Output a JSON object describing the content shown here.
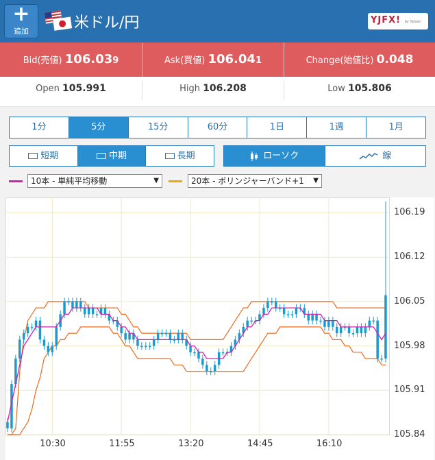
{
  "header": {
    "add_label": "追加",
    "pair_title": "米ドル/円",
    "logo_text": "YJFX!",
    "logo_sub": "by Yahoo!"
  },
  "quotes": {
    "bid_label": "Bid(売値)",
    "bid_main": "106.03",
    "bid_pip": "9",
    "ask_label": "Ask(買値)",
    "ask_main": "106.04",
    "ask_pip": "1",
    "change_label": "Change(始値比)",
    "change_value": "0.048"
  },
  "stats": {
    "open_label": "Open",
    "open_value": "105.991",
    "high_label": "High",
    "high_value": "106.208",
    "low_label": "Low",
    "low_value": "105.806"
  },
  "timeframes": [
    "1分",
    "5分",
    "15分",
    "60分",
    "1日",
    "1週",
    "1月"
  ],
  "timeframe_active": 1,
  "ranges": [
    "短期",
    "中期",
    "長期"
  ],
  "range_active": 1,
  "chart_types": [
    "ローソク",
    "線"
  ],
  "chart_type_active": 0,
  "indicators": {
    "ma_select": "10本 - 単純平均移動",
    "bb_select": "20本 - ボリンジャーバンド+1",
    "ma_color": "#d21fb0",
    "bb_color": "#f0a800"
  },
  "colors": {
    "header": "#2870b0",
    "quote_bar": "#de5b5e",
    "candle": "#1a9bd0",
    "band": "#ef6a1a"
  },
  "chart_data": {
    "type": "candlestick",
    "y_ticks": [
      "106.19",
      "106.12",
      "106.05",
      "105.98",
      "105.91",
      "105.84"
    ],
    "x_ticks": [
      "10:30",
      "11:55",
      "13:20",
      "14:45",
      "16:10"
    ],
    "ylim": [
      105.84,
      106.21
    ],
    "closes": [
      105.85,
      105.92,
      105.96,
      105.99,
      106.0,
      106.01,
      106.01,
      106.02,
      105.99,
      105.98,
      105.97,
      105.98,
      106.01,
      106.03,
      106.05,
      106.05,
      106.04,
      106.05,
      106.04,
      106.03,
      106.04,
      106.03,
      106.03,
      106.04,
      106.03,
      106.02,
      106.02,
      106.01,
      106.0,
      105.99,
      106.0,
      105.99,
      105.98,
      105.98,
      105.98,
      105.98,
      105.99,
      106.0,
      106.0,
      106.0,
      105.99,
      105.99,
      106.0,
      105.99,
      105.98,
      105.97,
      105.97,
      105.96,
      105.95,
      105.94,
      105.94,
      105.95,
      105.97,
      105.97,
      105.97,
      105.98,
      105.99,
      106.0,
      106.01,
      106.02,
      106.02,
      106.02,
      106.03,
      106.04,
      106.05,
      106.05,
      106.04,
      106.04,
      106.03,
      106.03,
      106.03,
      106.04,
      106.04,
      106.03,
      106.02,
      106.03,
      106.02,
      106.02,
      106.01,
      106.02,
      106.01,
      106.0,
      106.01,
      106.01,
      106.0,
      106.0,
      106.01,
      106.0,
      106.01,
      106.02,
      106.02,
      105.96,
      105.96,
      106.06
    ],
    "ma10": [
      105.86,
      105.89,
      105.92,
      105.95,
      105.98,
      105.99,
      106.0,
      106.01,
      106.01,
      106.01,
      106.01,
      106.01,
      106.01,
      106.02,
      106.03,
      106.03,
      106.04,
      106.04,
      106.04,
      106.04,
      106.04,
      106.04,
      106.04,
      106.03,
      106.03,
      106.03,
      106.02,
      106.02,
      106.01,
      106.01,
      106.0,
      106.0,
      105.99,
      105.99,
      105.99,
      105.99,
      105.99,
      105.99,
      105.99,
      105.99,
      105.99,
      105.99,
      105.99,
      105.99,
      105.99,
      105.98,
      105.98,
      105.97,
      105.97,
      105.96,
      105.96,
      105.96,
      105.96,
      105.96,
      105.97,
      105.97,
      105.98,
      105.99,
      106.0,
      106.01,
      106.01,
      106.02,
      106.02,
      106.03,
      106.03,
      106.04,
      106.04,
      106.04,
      106.04,
      106.04,
      106.04,
      106.04,
      106.04,
      106.03,
      106.03,
      106.03,
      106.03,
      106.03,
      106.02,
      106.02,
      106.02,
      106.02,
      106.01,
      106.01,
      106.01,
      106.01,
      106.01,
      106.01,
      106.01,
      106.01,
      106.01,
      106.0,
      105.99,
      106.0
    ],
    "bb_upper": [
      105.84,
      105.84,
      105.85,
      105.94,
      105.99,
      106.02,
      106.03,
      106.04,
      106.04,
      106.04,
      106.05,
      106.05,
      106.05,
      106.05,
      106.05,
      106.05,
      106.05,
      106.05,
      106.05,
      106.05,
      106.04,
      106.04,
      106.04,
      106.04,
      106.04,
      106.04,
      106.04,
      106.04,
      106.03,
      106.03,
      106.02,
      106.01,
      106.01,
      106.0,
      106.0,
      106.0,
      106.0,
      106.0,
      106.0,
      106.0,
      106.0,
      106.0,
      106.0,
      106.0,
      106.0,
      105.99,
      105.99,
      105.99,
      105.99,
      105.99,
      105.99,
      105.99,
      105.99,
      105.99,
      106.0,
      106.01,
      106.02,
      106.03,
      106.04,
      106.04,
      106.05,
      106.05,
      106.05,
      106.05,
      106.05,
      106.05,
      106.05,
      106.05,
      106.05,
      106.05,
      106.05,
      106.05,
      106.05,
      106.05,
      106.05,
      106.05,
      106.05,
      106.05,
      106.05,
      106.05,
      106.05,
      106.04,
      106.04,
      106.04,
      106.04,
      106.04,
      106.04,
      106.04,
      106.04,
      106.04,
      106.04,
      106.04,
      106.04,
      106.04
    ],
    "bb_lower": [
      105.84,
      105.84,
      105.84,
      105.84,
      105.85,
      105.86,
      105.88,
      105.91,
      105.93,
      105.96,
      105.97,
      105.98,
      105.98,
      105.99,
      105.99,
      106.0,
      106.0,
      106.0,
      106.01,
      106.01,
      106.01,
      106.01,
      106.01,
      106.01,
      106.01,
      106.01,
      106.0,
      106.0,
      105.99,
      105.98,
      105.98,
      105.97,
      105.96,
      105.96,
      105.96,
      105.96,
      105.96,
      105.96,
      105.96,
      105.96,
      105.96,
      105.95,
      105.95,
      105.95,
      105.94,
      105.94,
      105.94,
      105.94,
      105.94,
      105.94,
      105.94,
      105.94,
      105.94,
      105.94,
      105.94,
      105.94,
      105.94,
      105.94,
      105.94,
      105.95,
      105.96,
      105.97,
      105.98,
      105.99,
      106.0,
      106.0,
      106.0,
      106.01,
      106.01,
      106.01,
      106.01,
      106.01,
      106.01,
      106.01,
      106.01,
      106.01,
      106.01,
      106.01,
      106.0,
      106.0,
      105.99,
      105.99,
      105.99,
      105.98,
      105.98,
      105.97,
      105.97,
      105.97,
      105.96,
      105.96,
      105.96,
      105.96,
      105.95,
      105.95
    ]
  }
}
